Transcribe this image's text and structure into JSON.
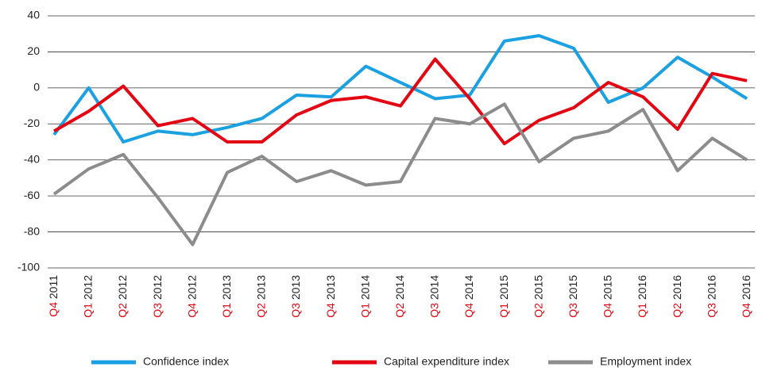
{
  "chart_data": {
    "type": "line",
    "categories": [
      "Q4 2011",
      "Q1 2012",
      "Q2 2012",
      "Q3 2012",
      "Q4 2012",
      "Q1 2013",
      "Q2 2013",
      "Q3 2013",
      "Q4 2013",
      "Q1 2014",
      "Q2 2014",
      "Q3 2014",
      "Q4 2014",
      "Q1 2015",
      "Q2 2015",
      "Q3 2015",
      "Q4 2015",
      "Q1 2016",
      "Q2 2016",
      "Q3 2016",
      "Q4 2016"
    ],
    "series": [
      {
        "name": "Confidence index",
        "color": "#1ba1e2",
        "values": [
          -26,
          0,
          -30,
          -24,
          -26,
          -22,
          -17,
          -4,
          -5,
          12,
          3,
          -6,
          -4,
          26,
          29,
          22,
          -8,
          0,
          17,
          6,
          -6
        ]
      },
      {
        "name": "Capital expenditure index",
        "color": "#e30613",
        "values": [
          -24,
          -13,
          1,
          -21,
          -17,
          -30,
          -30,
          -15,
          -7,
          -5,
          -10,
          16,
          -6,
          -31,
          -18,
          -11,
          3,
          -5,
          -23,
          8,
          4
        ]
      },
      {
        "name": "Employment index",
        "color": "#8c8c8c",
        "values": [
          -59,
          -45,
          -37,
          -61,
          -87,
          -47,
          -38,
          -52,
          -46,
          -54,
          -52,
          -17,
          -20,
          -9,
          -41,
          -28,
          -24,
          -12,
          -46,
          -28,
          -40
        ]
      }
    ],
    "ylim": [
      -100,
      40
    ],
    "yticks": [
      -100,
      -80,
      -60,
      -40,
      -20,
      0,
      20,
      40
    ],
    "grid": true,
    "legend": "bottom"
  }
}
